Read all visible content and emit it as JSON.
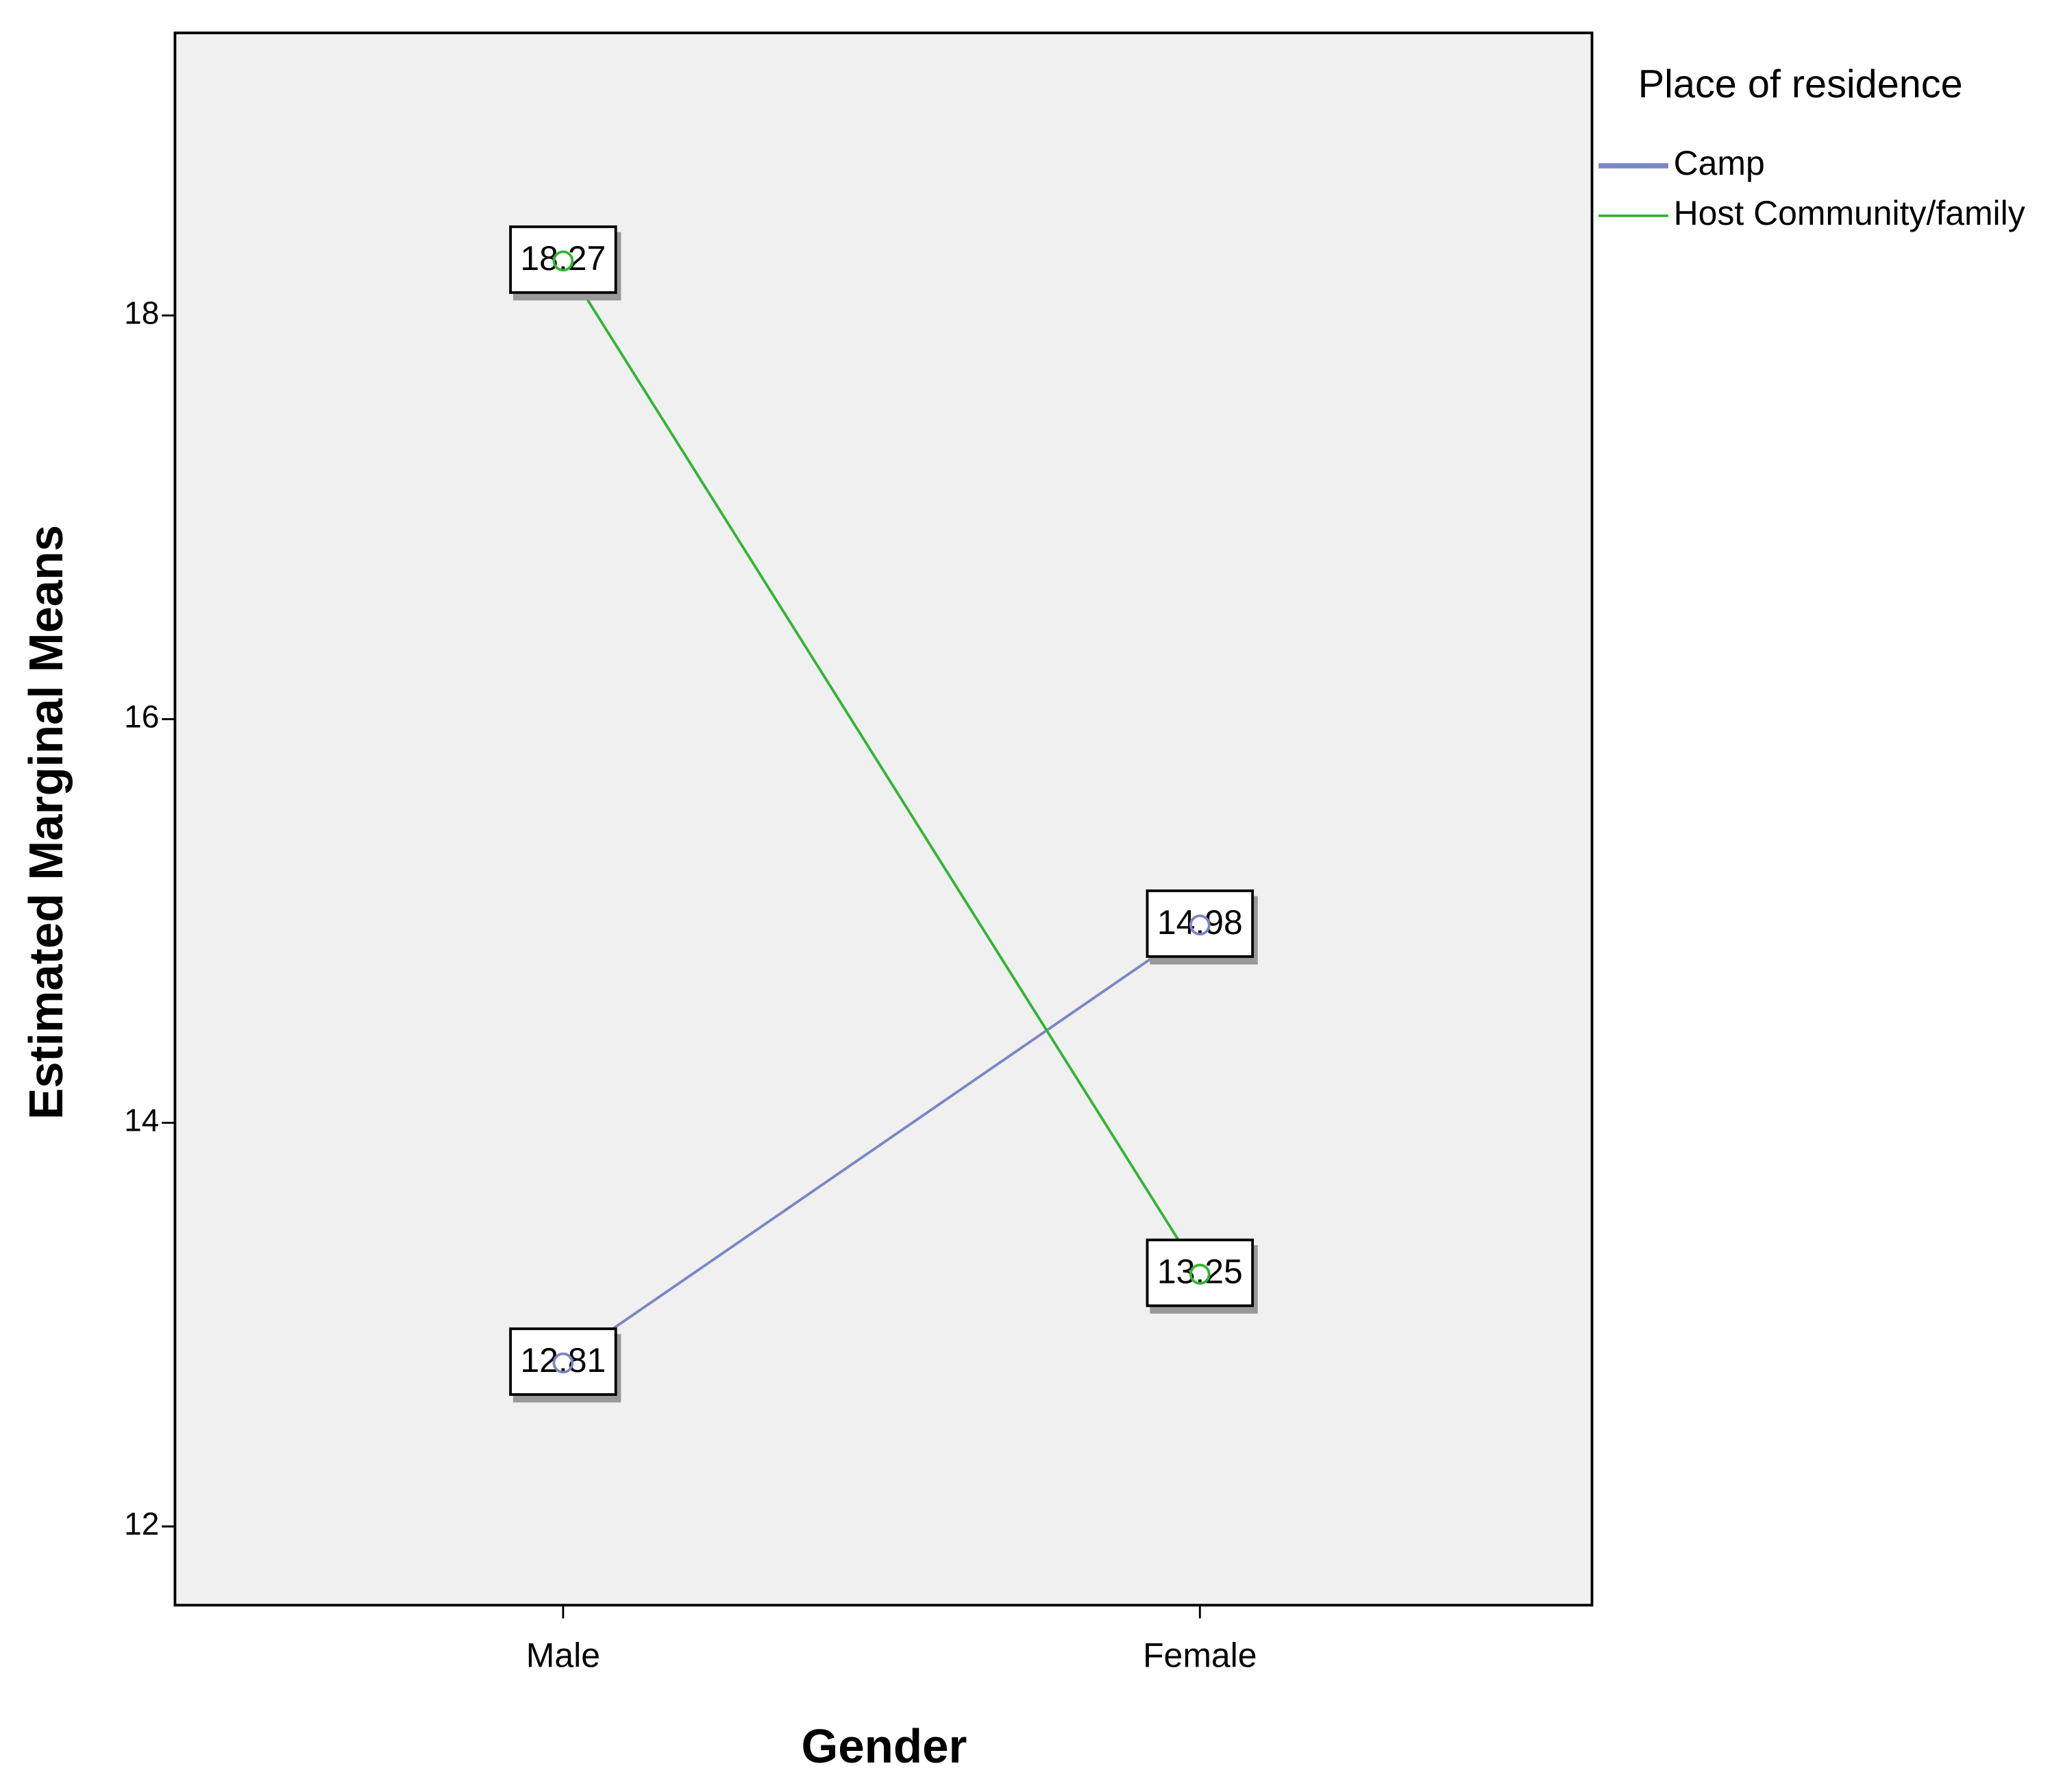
{
  "chart_data": {
    "type": "line",
    "x_label": "Gender",
    "y_label": "Estimated Marginal Means",
    "legend_title": "Place of residence",
    "legend_position": "right",
    "categories": [
      "Male",
      "Female"
    ],
    "series": [
      {
        "name": "Camp",
        "color": "#7b86c4",
        "values": [
          12.81,
          14.98
        ]
      },
      {
        "name": "Host Community/family",
        "color": "#33b533",
        "values": [
          18.27,
          13.25
        ]
      }
    ],
    "ylim": [
      11.61,
      19.4
    ],
    "yticks": [
      12,
      14,
      16,
      18
    ],
    "grid": false,
    "data_labels": true
  }
}
